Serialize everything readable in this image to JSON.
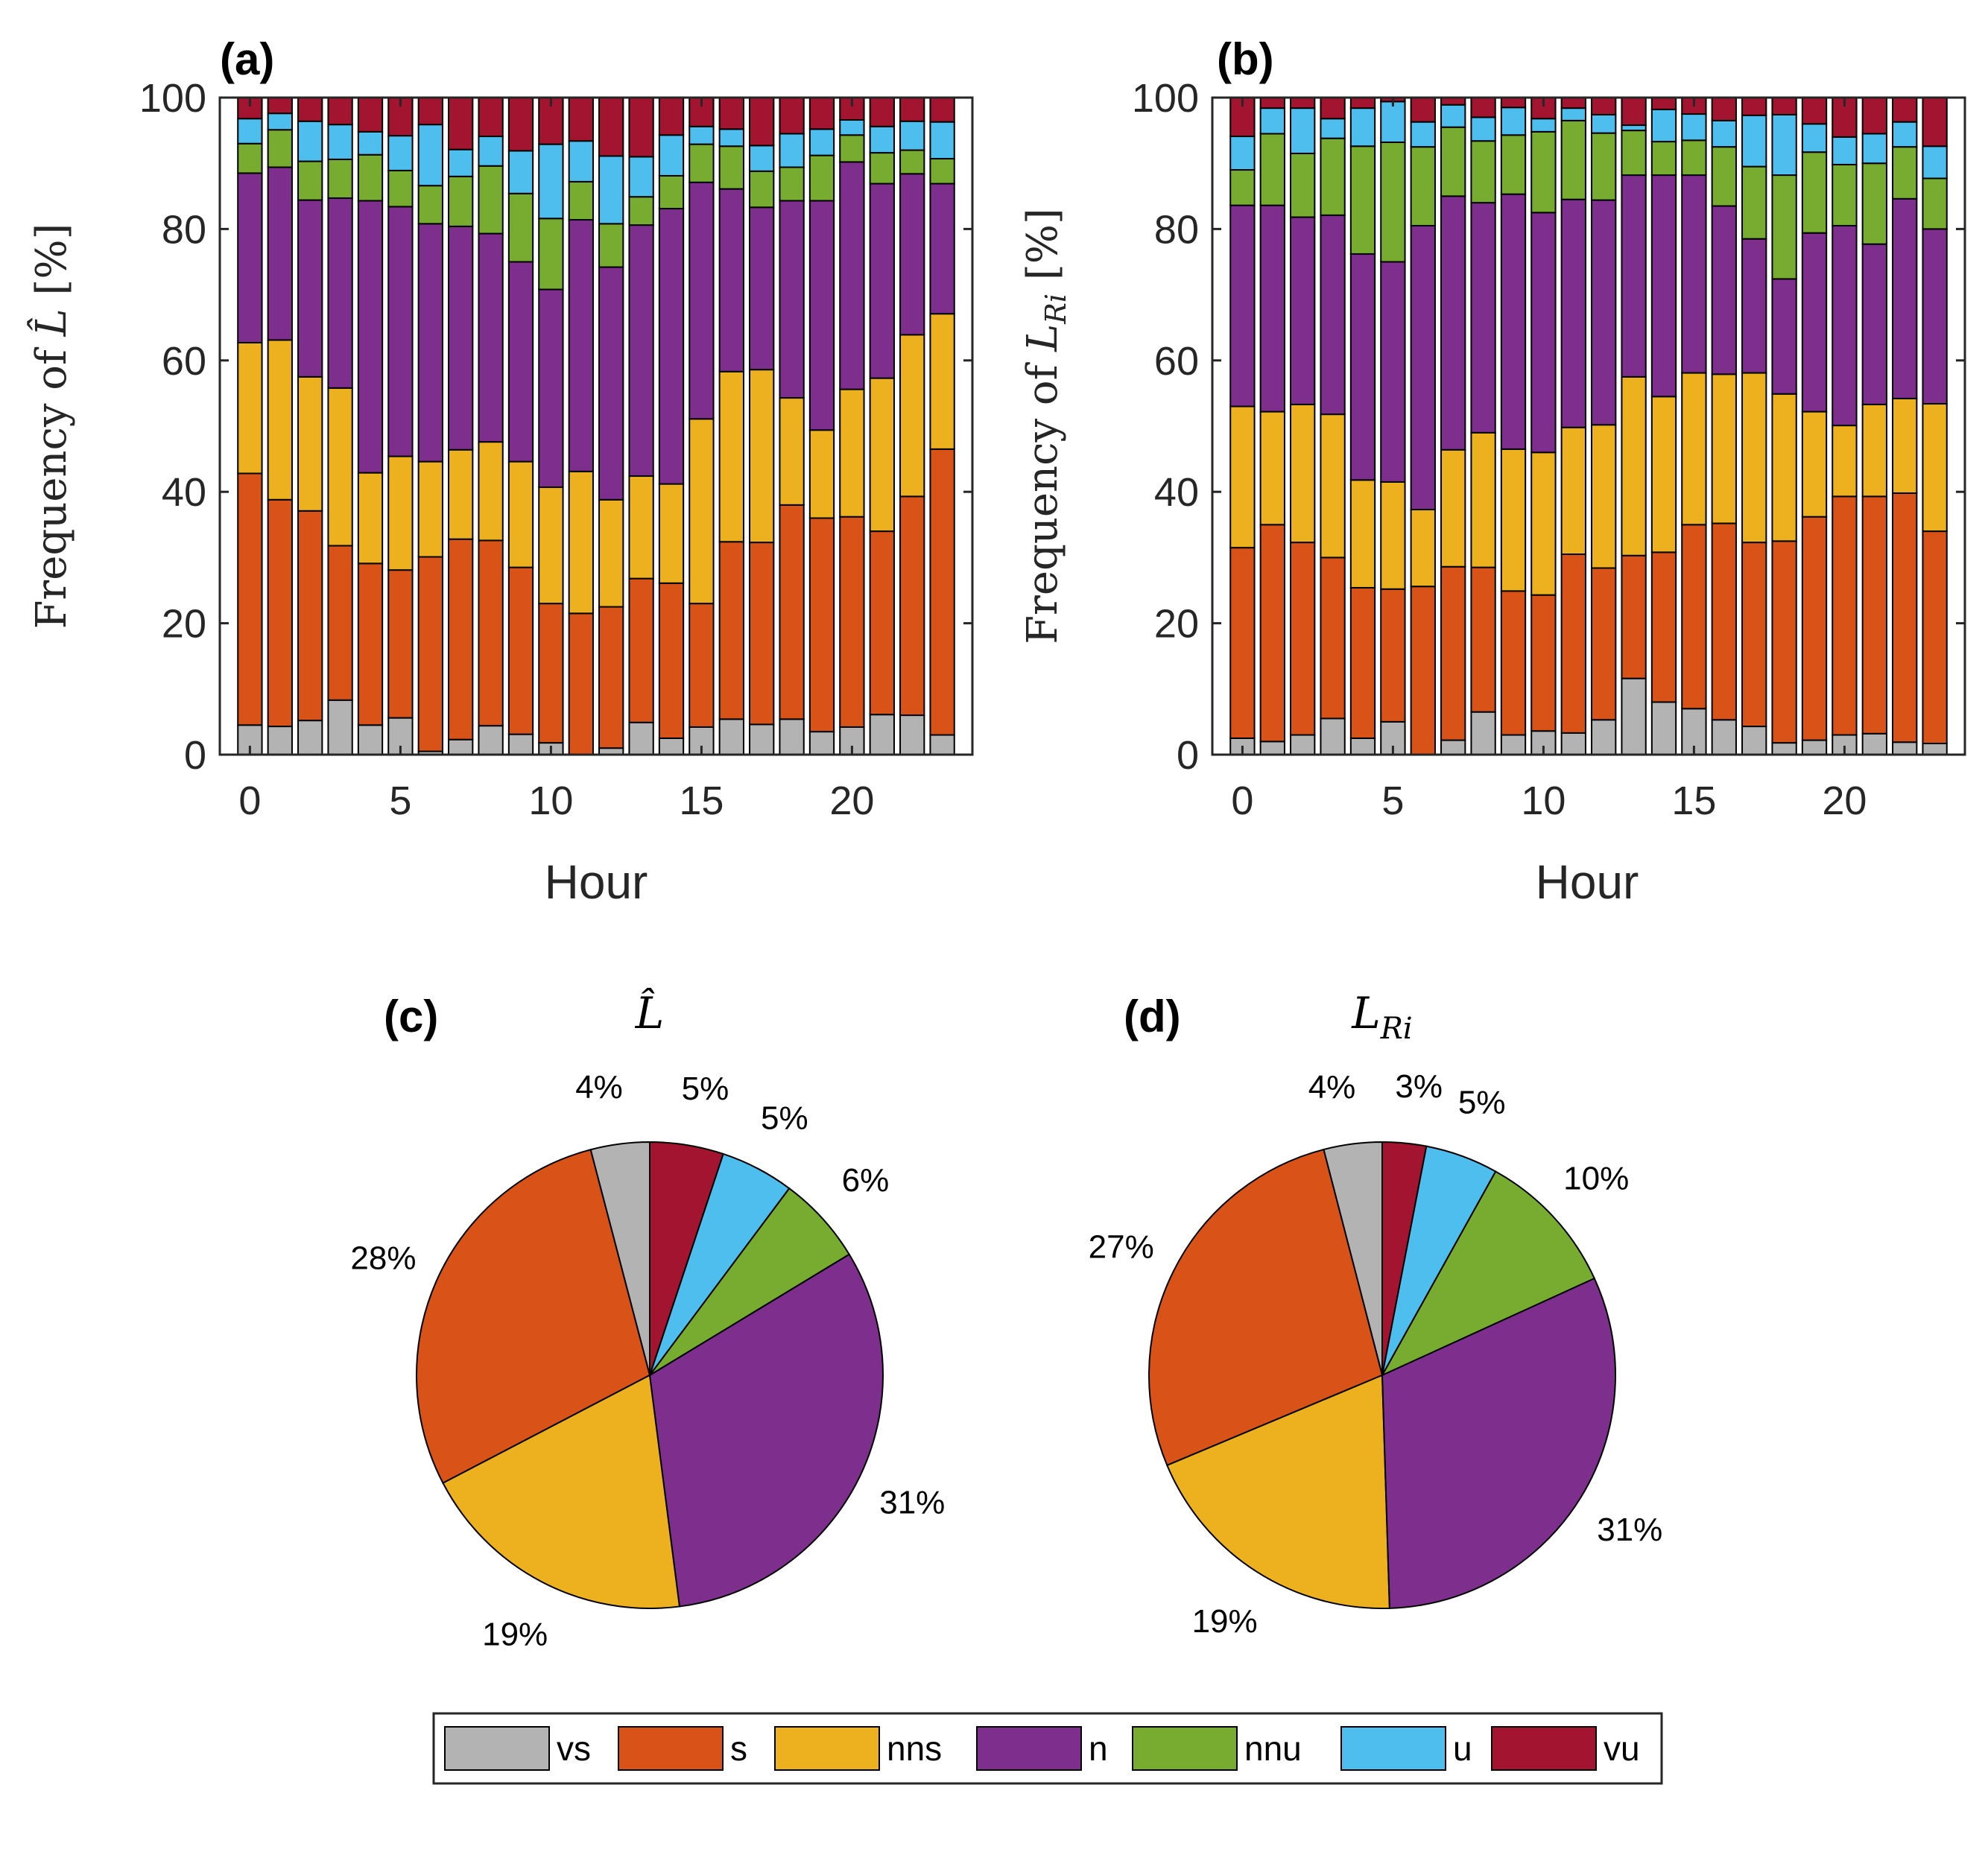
{
  "chart_data": [
    {
      "id": "a",
      "type": "bar",
      "stacked": true,
      "panel_label": "(a)",
      "ylabel_prefix": "Frequency of ",
      "ylabel_symbol": "L̂",
      "ylabel_suffix": " [%]",
      "xlabel": "Hour",
      "xlim": [
        -1,
        24
      ],
      "ylim": [
        0,
        100
      ],
      "xticks": [
        "0",
        "5",
        "10",
        "15",
        "20"
      ],
      "yticks": [
        "0",
        "20",
        "40",
        "60",
        "80",
        "100"
      ],
      "categories": [
        0,
        1,
        2,
        3,
        4,
        5,
        6,
        7,
        8,
        9,
        10,
        11,
        12,
        13,
        14,
        15,
        16,
        17,
        18,
        19,
        20,
        21,
        22,
        23
      ],
      "cumulative_tops": {
        "vs": [
          4.5,
          4.3,
          5.2,
          8.3,
          4.5,
          5.6,
          0.5,
          2.3,
          4.4,
          3.1,
          1.8,
          0,
          1,
          4.9,
          2.5,
          4.2,
          5.4,
          4.6,
          5.4,
          3.5,
          4.2,
          6.1,
          6,
          3
        ],
        "s": [
          42.8,
          38.8,
          37.1,
          31.8,
          29.1,
          28.1,
          30.1,
          32.8,
          32.6,
          28.5,
          23,
          21.5,
          22.5,
          26.8,
          26.1,
          23,
          32.4,
          32.3,
          38,
          36,
          36.2,
          34,
          39.3,
          46.5
        ],
        "nns": [
          62.7,
          63.1,
          57.5,
          55.8,
          42.9,
          45.4,
          44.6,
          46.4,
          47.6,
          44.6,
          40.7,
          43.1,
          38.8,
          42.4,
          41.2,
          51.1,
          58.3,
          58.6,
          54.3,
          49.4,
          55.6,
          57.3,
          63.9,
          67.1
        ],
        "n": [
          88.5,
          89.4,
          84.4,
          84.7,
          84.3,
          83.4,
          80.8,
          80.4,
          79.3,
          75,
          70.8,
          81.4,
          74.2,
          80.6,
          83.1,
          87.1,
          86.1,
          83.3,
          84.3,
          84.3,
          90.2,
          86.9,
          88.4,
          86.9
        ],
        "nnu": [
          93,
          95.1,
          90.3,
          90.6,
          91.3,
          88.9,
          86.6,
          88,
          89.6,
          85.4,
          81.6,
          87.2,
          80.8,
          84.9,
          88.1,
          92.9,
          92.6,
          88.8,
          89.4,
          91.2,
          94.3,
          91.6,
          92,
          90.7
        ],
        "u": [
          96.8,
          97.6,
          96.4,
          95.9,
          94.8,
          94.2,
          95.9,
          92.1,
          94.1,
          91.9,
          92.9,
          93.4,
          91.1,
          91,
          94.3,
          95.6,
          95.2,
          92.7,
          94.5,
          95.2,
          96.6,
          95.6,
          96.4,
          96.3
        ],
        "vu": [
          100,
          100,
          100,
          100,
          100,
          100,
          100,
          100,
          100,
          100,
          100,
          100,
          100,
          100,
          100,
          100,
          100,
          100,
          100,
          100,
          100,
          100,
          100,
          100
        ]
      }
    },
    {
      "id": "b",
      "type": "bar",
      "stacked": true,
      "panel_label": "(b)",
      "ylabel_prefix": "Frequency of ",
      "ylabel_symbol": "L",
      "ylabel_sub": "Ri",
      "ylabel_suffix": " [%]",
      "xlabel": "Hour",
      "xlim": [
        -1,
        24
      ],
      "ylim": [
        0,
        100
      ],
      "xticks": [
        "0",
        "5",
        "10",
        "15",
        "20"
      ],
      "yticks": [
        "0",
        "20",
        "40",
        "60",
        "80",
        "100"
      ],
      "categories": [
        0,
        1,
        2,
        3,
        4,
        5,
        6,
        7,
        8,
        9,
        10,
        11,
        12,
        13,
        14,
        15,
        16,
        17,
        18,
        19,
        20,
        21,
        22,
        23
      ],
      "cumulative_tops": {
        "vs": [
          2.5,
          2,
          3,
          5.5,
          2.5,
          5,
          0,
          2.2,
          6.5,
          3,
          3.6,
          3.3,
          5.3,
          11.6,
          8,
          7,
          5.3,
          4.3,
          1.8,
          2.2,
          3,
          3.2,
          1.9,
          1.7
        ],
        "s": [
          31.5,
          35,
          32.3,
          30,
          25.4,
          25.2,
          25.6,
          28.6,
          28.5,
          24.9,
          24.3,
          30.5,
          28.4,
          30.3,
          30.8,
          35,
          35.2,
          32.3,
          32.5,
          36.2,
          39.3,
          39.3,
          39.8,
          34
        ],
        "nns": [
          53,
          52.2,
          53.3,
          51.8,
          41.8,
          41.5,
          37.3,
          46.4,
          49,
          46.5,
          46,
          49.8,
          50.2,
          57.5,
          54.5,
          58.1,
          57.9,
          58.1,
          54.9,
          52.2,
          50.1,
          53.3,
          54.2,
          53.4
        ],
        "n": [
          83.6,
          83.6,
          81.8,
          82.1,
          76.2,
          75,
          80.5,
          85,
          84,
          85.3,
          82.5,
          84.5,
          84.4,
          88.2,
          88.2,
          88.2,
          83.5,
          78.5,
          72.4,
          79.4,
          80.5,
          77.7,
          84.6,
          80
        ],
        "nnu": [
          89,
          94.5,
          91.5,
          93.8,
          92.6,
          93.2,
          92.5,
          95.5,
          93.4,
          94.3,
          94.8,
          96.5,
          94.6,
          95,
          93.3,
          93.5,
          92.5,
          89.5,
          88.2,
          91.7,
          89.8,
          90,
          92.5,
          87.7
        ],
        "u": [
          94.1,
          98.4,
          98.4,
          96.8,
          98.4,
          99.4,
          96.3,
          98.9,
          97,
          98.5,
          96.8,
          98.4,
          97.4,
          95.8,
          98.2,
          97.5,
          96.5,
          97.3,
          97.4,
          96,
          94,
          94.5,
          96.3,
          92.6
        ],
        "vu": [
          100,
          100,
          100,
          100,
          100,
          100,
          100,
          100,
          100,
          100,
          100,
          100,
          100,
          100,
          100,
          100,
          100,
          100,
          100,
          100,
          100,
          100,
          100,
          100
        ]
      }
    },
    {
      "id": "c",
      "type": "pie",
      "panel_label": "(c)",
      "title_symbol": "L̂",
      "labels": [
        "vs",
        "s",
        "nns",
        "n",
        "nnu",
        "u",
        "vu"
      ],
      "values": [
        4,
        28,
        19,
        31,
        6,
        5,
        5
      ],
      "value_labels": [
        "4%",
        "28%",
        "19%",
        "31%",
        "6%",
        "5%",
        "5%"
      ]
    },
    {
      "id": "d",
      "type": "pie",
      "panel_label": "(d)",
      "title_symbol": "L",
      "title_sub": "Ri",
      "labels": [
        "vs",
        "s",
        "nns",
        "n",
        "nnu",
        "u",
        "vu"
      ],
      "values": [
        4,
        27,
        19,
        31,
        10,
        5,
        3
      ],
      "value_labels": [
        "4%",
        "27%",
        "19%",
        "31%",
        "10%",
        "5%",
        "3%"
      ]
    }
  ],
  "legend": {
    "entries": [
      {
        "key": "vs",
        "label": "vs",
        "color": "#b3b3b3"
      },
      {
        "key": "s",
        "label": "s",
        "color": "#d95319"
      },
      {
        "key": "nns",
        "label": "nns",
        "color": "#edb120"
      },
      {
        "key": "n",
        "label": "n",
        "color": "#7e2f8e"
      },
      {
        "key": "nnu",
        "label": "nnu",
        "color": "#77ac30"
      },
      {
        "key": "u",
        "label": "u",
        "color": "#4dbeee"
      },
      {
        "key": "vu",
        "label": "vu",
        "color": "#a2142f"
      }
    ]
  }
}
